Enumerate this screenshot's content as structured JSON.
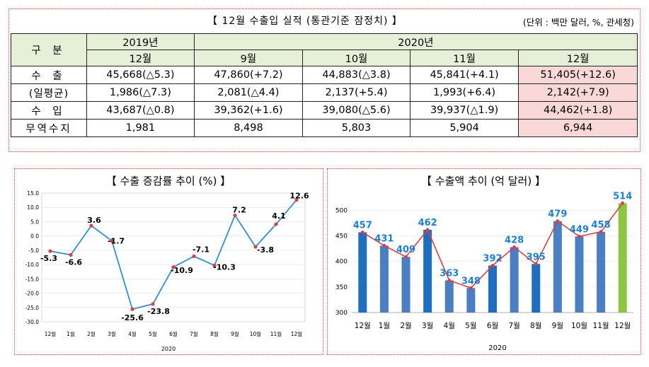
{
  "table": {
    "title": "【 12월 수출입 실적 (통관기준 잠정치) 】",
    "unit": "(단위 : 백만 달러, %, 관세청)",
    "header": {
      "category": "구 분",
      "year1": "2019년",
      "year2": "2020년",
      "months": [
        "12월",
        "9월",
        "10월",
        "11월",
        "12월"
      ]
    },
    "rows": [
      {
        "label": "수 출",
        "values": [
          "45,668(△5.3)",
          "47,860(+7.2)",
          "44,883(△3.8)",
          "45,841(+4.1)",
          "51,405(+12.6)"
        ]
      },
      {
        "label": "(일평균)",
        "values": [
          "1,986(△7.3)",
          "2,081(△4.4)",
          "2,137(+5.4)",
          "1,993(+6.4)",
          "2,142(+7.9)"
        ]
      },
      {
        "label": "수 입",
        "values": [
          "43,687(△0.8)",
          "39,362(+1.6)",
          "39,080(△5.6)",
          "39,937(△1.9)",
          "44,462(+1.8)"
        ]
      },
      {
        "label": "무역수지",
        "values": [
          "1,981",
          "8,498",
          "5,803",
          "5,904",
          "6,944"
        ]
      }
    ],
    "highlight_color": "#fbd8d8",
    "header_color": "#e6f0d8"
  },
  "chart_data": [
    {
      "type": "line",
      "title": "【 수출 증감률 추이 (%) 】",
      "x": [
        "12월",
        "1월",
        "2월",
        "3월",
        "4월",
        "5월",
        "6월",
        "7월",
        "8월",
        "9월",
        "10월",
        "11월",
        "12월"
      ],
      "xlabel": "2020",
      "series": [
        {
          "values": [
            -5.3,
            -6.6,
            3.6,
            -1.7,
            -25.6,
            -23.8,
            -10.9,
            -7.1,
            -10.3,
            7.2,
            -3.8,
            4.1,
            12.6
          ]
        }
      ],
      "yticks": [
        "15.0",
        "10.0",
        "5.0",
        "0.0",
        "-5.0",
        "-10.0",
        "-15.0",
        "-20.0",
        "-25.0",
        "-30.0"
      ],
      "ylim": [
        -30,
        15
      ],
      "line_color": "#2e8fd6",
      "marker_color": "#d94040"
    },
    {
      "type": "bar",
      "title": "【 수출액 추이 (억 달러) 】",
      "categories": [
        "12월",
        "1월",
        "2월",
        "3월",
        "4월",
        "5월",
        "6월",
        "7월",
        "8월",
        "9월",
        "10월",
        "11월",
        "12월"
      ],
      "xlabel": "2020",
      "values": [
        457,
        431,
        409,
        462,
        363,
        348,
        392,
        428,
        395,
        479,
        449,
        458,
        514
      ],
      "yticks": [
        "500",
        "450",
        "400",
        "350",
        "300"
      ],
      "ylim": [
        300,
        520
      ],
      "bar_colors": [
        "#1f6fc0",
        "#4a7fc4",
        "#4a7fc4",
        "#1f6fc0",
        "#4a7fc4",
        "#4a7fc4",
        "#1f6fc0",
        "#4a7fc4",
        "#1f6fc0",
        "#4a7fc4",
        "#4a7fc4",
        "#4a7fc4",
        "#8cc63f"
      ],
      "line_color": "#d94040",
      "label_color": "#1f7fd0"
    }
  ]
}
